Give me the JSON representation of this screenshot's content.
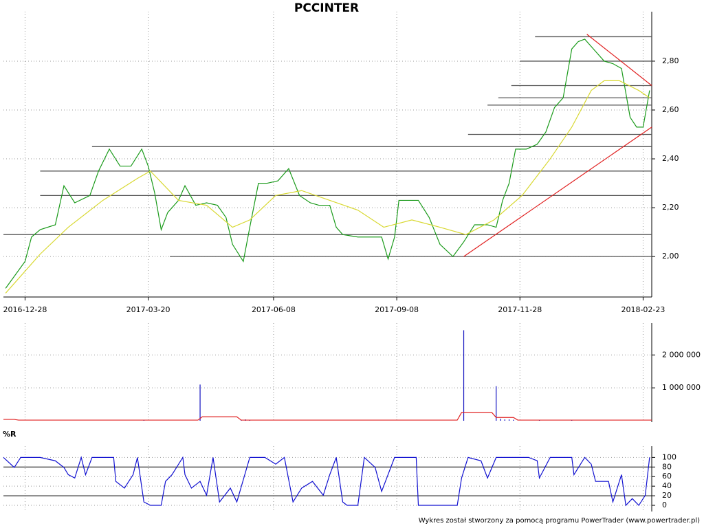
{
  "title": "PCCINTER",
  "footer": "Wykres został stworzony za pomocą programu PowerTrader (www.powertrader.pl)",
  "chart_data": [
    {
      "type": "line",
      "xlim": [
        -10,
        290
      ],
      "ylim": [
        1.84,
        2.98
      ],
      "xticks": [
        {
          "value": 0,
          "label": "2016-12-28"
        },
        {
          "value": 57,
          "label": "2017-03-20"
        },
        {
          "value": 115,
          "label": "2017-06-08"
        },
        {
          "value": 172,
          "label": "2017-09-08"
        },
        {
          "value": 229,
          "label": "2017-11-28"
        },
        {
          "value": 286,
          "label": "2018-02-23"
        }
      ],
      "yticks": [
        {
          "value": 2.0,
          "label": "2,00"
        },
        {
          "value": 2.2,
          "label": "2,20"
        },
        {
          "value": 2.4,
          "label": "2,40"
        },
        {
          "value": 2.6,
          "label": "2,60"
        },
        {
          "value": 2.8,
          "label": "2,80"
        }
      ],
      "grid": true,
      "series": [
        {
          "color": "#1a9a1a",
          "x": [
            -9,
            0,
            3,
            7,
            14,
            18,
            23,
            30,
            34,
            39,
            44,
            49,
            54,
            57,
            60,
            63,
            66,
            71,
            74,
            79,
            84,
            89,
            93,
            96,
            101,
            104,
            108,
            112,
            117,
            122,
            127,
            132,
            136,
            141,
            144,
            147,
            154,
            160,
            165,
            168,
            171,
            173,
            178,
            182,
            187,
            192,
            198,
            203,
            208,
            214,
            218,
            221,
            224,
            227,
            232,
            237,
            241,
            245,
            249,
            253,
            256,
            259,
            264,
            268,
            272,
            276,
            280,
            283,
            286,
            289
          ],
          "values": [
            1.87,
            1.98,
            2.08,
            2.11,
            2.13,
            2.29,
            2.22,
            2.25,
            2.35,
            2.44,
            2.37,
            2.37,
            2.44,
            2.37,
            2.26,
            2.11,
            2.18,
            2.23,
            2.29,
            2.21,
            2.22,
            2.21,
            2.16,
            2.05,
            1.98,
            2.12,
            2.3,
            2.3,
            2.31,
            2.36,
            2.25,
            2.22,
            2.21,
            2.21,
            2.12,
            2.09,
            2.08,
            2.08,
            2.08,
            1.99,
            2.08,
            2.23,
            2.23,
            2.23,
            2.16,
            2.05,
            2.0,
            2.06,
            2.13,
            2.13,
            2.12,
            2.23,
            2.3,
            2.44,
            2.44,
            2.46,
            2.51,
            2.61,
            2.65,
            2.85,
            2.88,
            2.89,
            2.84,
            2.8,
            2.79,
            2.77,
            2.57,
            2.53,
            2.53,
            2.68
          ]
        },
        {
          "color": "#d8d830",
          "x": [
            -9,
            7,
            20,
            36,
            52,
            58,
            71,
            84,
            96,
            104,
            116,
            128,
            141,
            154,
            166,
            179,
            192,
            204,
            217,
            230,
            243,
            253,
            262,
            268,
            275,
            284,
            289
          ],
          "values": [
            1.85,
            2.01,
            2.12,
            2.23,
            2.32,
            2.35,
            2.23,
            2.21,
            2.12,
            2.15,
            2.25,
            2.27,
            2.23,
            2.19,
            2.12,
            2.15,
            2.12,
            2.09,
            2.15,
            2.25,
            2.4,
            2.53,
            2.68,
            2.72,
            2.72,
            2.68,
            2.65
          ]
        }
      ],
      "hlines": [
        {
          "value": 2.0,
          "from": 67
        },
        {
          "value": 2.09,
          "from": -10
        },
        {
          "value": 2.25,
          "from": 7
        },
        {
          "value": 2.35,
          "from": 7
        },
        {
          "value": 2.45,
          "from": 31
        },
        {
          "value": 2.5,
          "from": 205
        },
        {
          "value": 2.62,
          "from": 214
        },
        {
          "value": 2.65,
          "from": 219
        },
        {
          "value": 2.7,
          "from": 225
        },
        {
          "value": 2.8,
          "from": 229
        },
        {
          "value": 2.9,
          "from": 236
        }
      ],
      "hline_color": "#555555",
      "trendlines": [
        {
          "x": [
            203,
            290
          ],
          "y": [
            2.0,
            2.53
          ]
        },
        {
          "x": [
            260,
            290
          ],
          "y": [
            2.91,
            2.7
          ]
        }
      ],
      "trend_color": "#e02020"
    },
    {
      "type": "bar",
      "xlim": [
        -10,
        290
      ],
      "ylim": [
        0,
        2800000
      ],
      "yticks": [
        {
          "value": 1000000,
          "label": "1 000 000"
        },
        {
          "value": 2000000,
          "label": "2 000 000"
        }
      ],
      "grid": true,
      "series": [
        {
          "style": "bar",
          "color": "#1010c0",
          "x": [
            55,
            81,
            100,
            102,
            104,
            203,
            218,
            220,
            222,
            224,
            226,
            238,
            253
          ],
          "values": [
            20000,
            1100000,
            30000,
            40000,
            30000,
            2750000,
            1050000,
            60000,
            40000,
            40000,
            30000,
            20000,
            20000
          ]
        },
        {
          "style": "line",
          "color": "#e02020",
          "x": [
            -10,
            -5,
            -3,
            80,
            82,
            98,
            100,
            150,
            200,
            202,
            216,
            218,
            226,
            228,
            290
          ],
          "values": [
            40000,
            40000,
            20000,
            20000,
            120000,
            120000,
            20000,
            20000,
            20000,
            250000,
            250000,
            100000,
            100000,
            20000,
            20000
          ]
        }
      ]
    },
    {
      "type": "line",
      "title": "%R",
      "xlim": [
        -10,
        290
      ],
      "ylim": [
        -10,
        112
      ],
      "yticks": [
        0,
        20,
        40,
        60,
        80,
        100
      ],
      "grid": true,
      "bold_levels": [
        20,
        80
      ],
      "series": [
        {
          "color": "#1010d0",
          "x": [
            -10,
            -5,
            -2,
            7,
            14,
            18,
            20,
            23,
            26,
            28,
            31,
            41,
            42,
            46,
            50,
            52,
            55,
            58,
            63,
            65,
            68,
            73,
            74,
            77,
            81,
            84,
            87,
            90,
            95,
            98,
            104,
            111,
            116,
            120,
            124,
            128,
            133,
            138,
            141,
            144,
            147,
            149,
            154,
            157,
            162,
            165,
            171,
            181,
            182,
            200,
            202,
            205,
            211,
            214,
            218,
            227,
            233,
            237,
            238,
            243,
            253,
            254,
            259,
            262,
            264,
            270,
            272,
            276,
            278,
            281,
            284,
            287,
            289
          ],
          "values": [
            100,
            79,
            100,
            100,
            93,
            79,
            64,
            57,
            100,
            64,
            100,
            100,
            50,
            36,
            64,
            100,
            7,
            0,
            0,
            50,
            64,
            100,
            64,
            36,
            50,
            21,
            100,
            7,
            36,
            7,
            100,
            100,
            86,
            100,
            7,
            36,
            50,
            21,
            64,
            100,
            7,
            0,
            0,
            100,
            79,
            29,
            100,
            100,
            0,
            0,
            57,
            100,
            93,
            57,
            100,
            100,
            100,
            93,
            57,
            100,
            100,
            64,
            100,
            86,
            50,
            50,
            7,
            64,
            0,
            14,
            0,
            21,
            100
          ]
        }
      ]
    }
  ]
}
